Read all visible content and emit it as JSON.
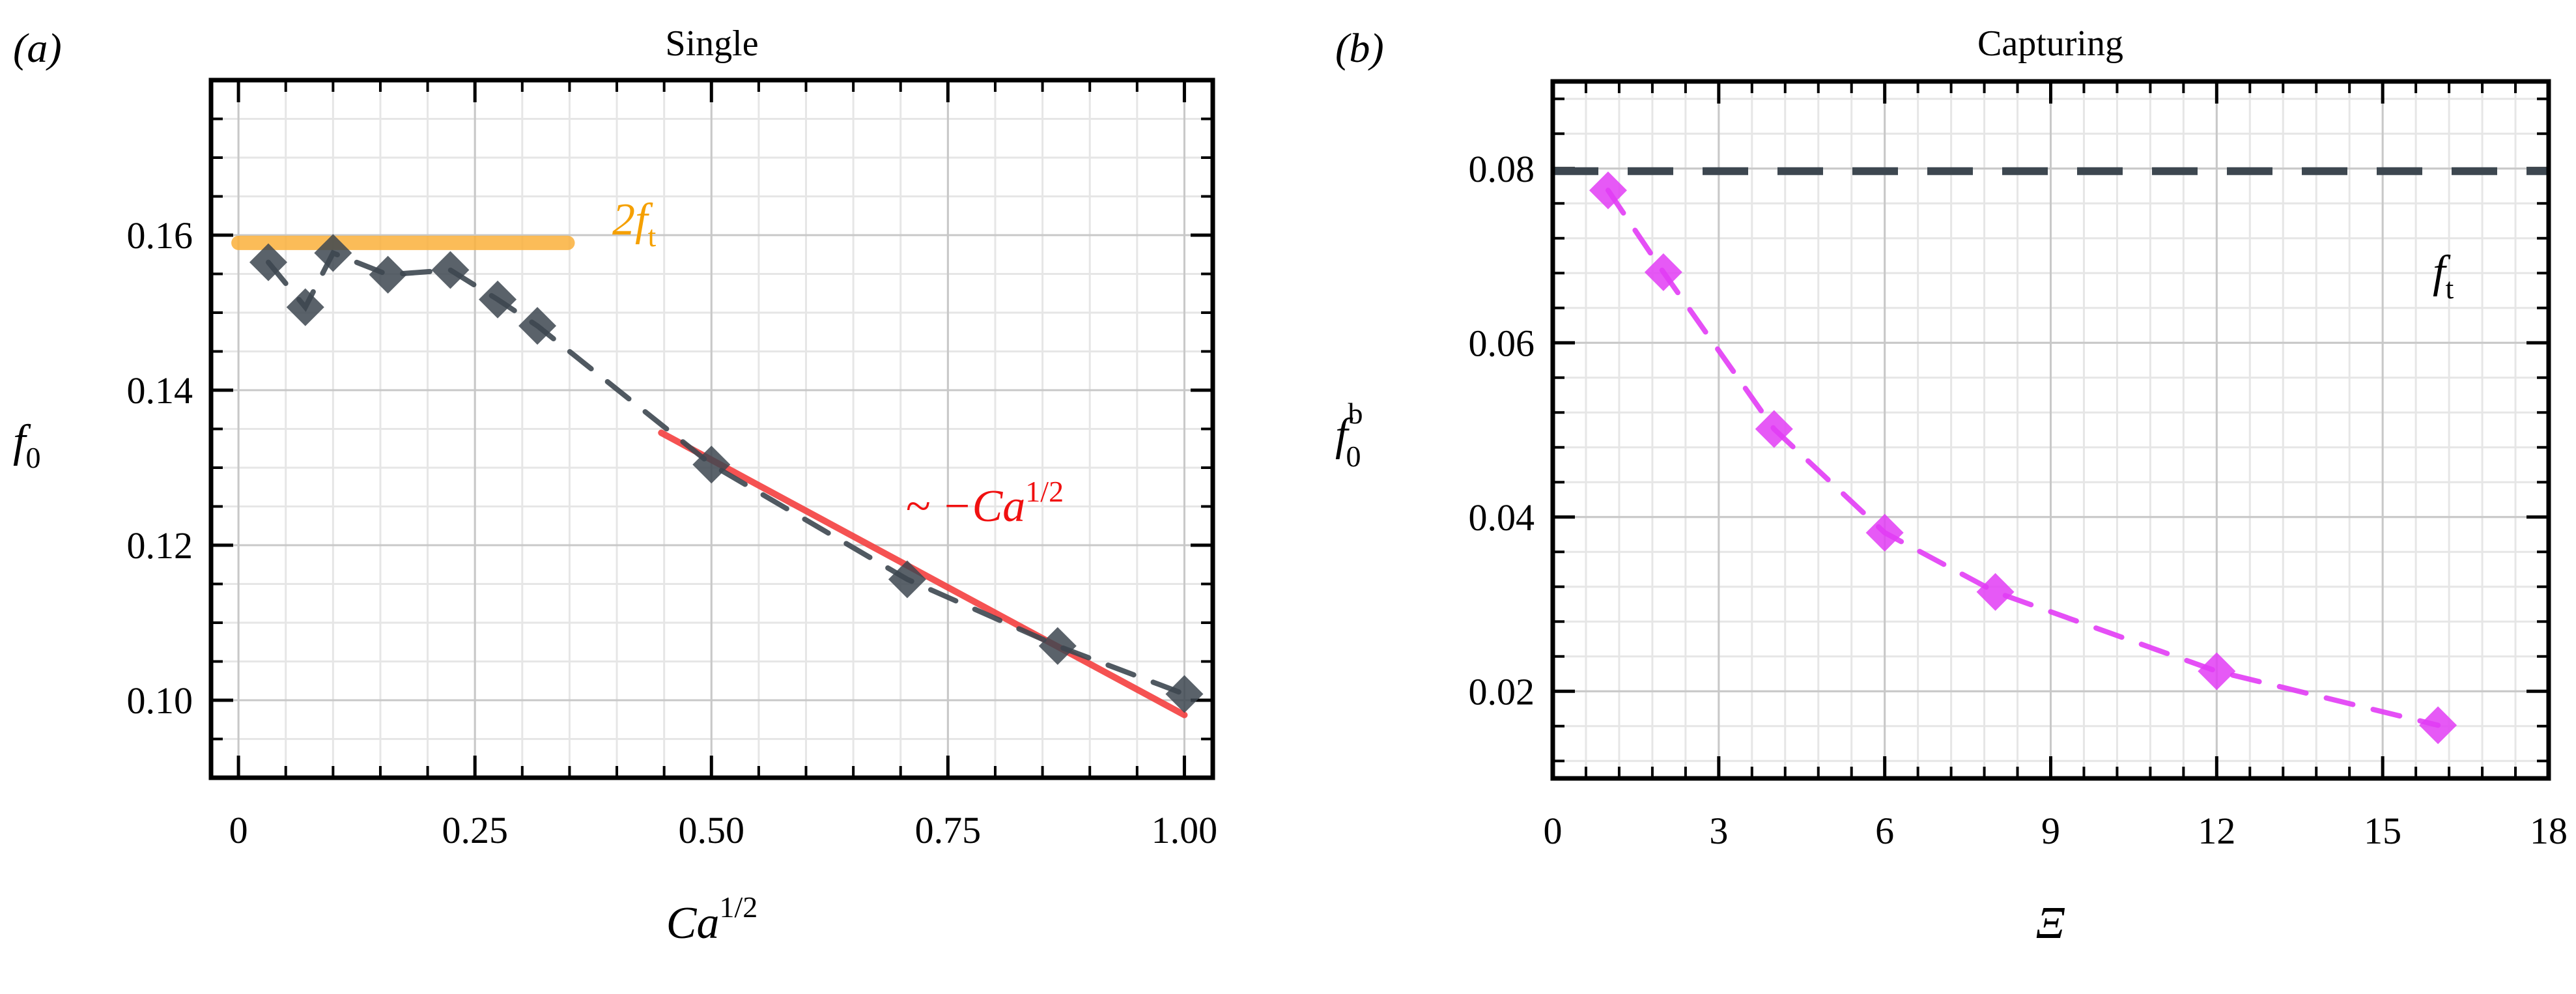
{
  "chart_data": [
    {
      "type": "scatter",
      "panel_label": "(a)",
      "title": "Single",
      "xlabel": "Ca",
      "xlabel_sup": "1/2",
      "ylabel": "f",
      "ylabel_sub": "0",
      "xlim": [
        -0.029,
        1.03
      ],
      "ylim": [
        0.09,
        0.18
      ],
      "xticks": [
        0,
        0.25,
        0.5,
        0.75,
        1.0
      ],
      "xtick_labels": [
        "0",
        "0.25",
        "0.50",
        "0.75",
        "1.00"
      ],
      "yticks": [
        0.1,
        0.12,
        0.14,
        0.16
      ],
      "ytick_labels": [
        "0.10",
        "0.12",
        "0.14",
        "0.16"
      ],
      "grid": true,
      "series": [
        {
          "style": "diamond markers with dashed line",
          "color": "#3d4750",
          "x": [
            0.0316,
            0.0707,
            0.1,
            0.158,
            0.224,
            0.274,
            0.316,
            0.5,
            0.707,
            0.866,
            1.0
          ],
          "y": [
            0.1565,
            0.1507,
            0.1577,
            0.1549,
            0.1555,
            0.1517,
            0.1483,
            0.1304,
            0.1156,
            0.107,
            0.1008
          ]
        }
      ],
      "lines": [
        {
          "label": "2f",
          "label_sub": "t",
          "color": "#fbb13c",
          "x": [
            0,
            0.348
          ],
          "y": [
            0.159,
            0.159
          ]
        },
        {
          "label": "~ −Ca",
          "label_sup": "1/2",
          "color": "#f44040",
          "x": [
            0.447,
            1.0
          ],
          "y": [
            0.1345,
            0.0981
          ]
        }
      ]
    },
    {
      "type": "scatter",
      "panel_label": "(b)",
      "title": "Capturing",
      "xlabel": "Ξ",
      "ylabel": "f",
      "ylabel_sub": "0",
      "ylabel_sup": "b",
      "xlim": [
        0,
        18
      ],
      "ylim": [
        0.01,
        0.09
      ],
      "xticks": [
        0,
        3,
        6,
        9,
        12,
        15,
        18
      ],
      "xtick_labels": [
        "0",
        "3",
        "6",
        "9",
        "12",
        "15",
        "18"
      ],
      "yticks": [
        0.02,
        0.04,
        0.06,
        0.08
      ],
      "ytick_labels": [
        "0.02",
        "0.04",
        "0.06",
        "0.08"
      ],
      "grid": true,
      "series": [
        {
          "style": "diamond markers with dashed line",
          "color": "#e23cf5",
          "x": [
            1,
            2,
            4,
            6,
            8,
            12,
            16
          ],
          "y": [
            0.0775,
            0.0681,
            0.0501,
            0.0382,
            0.0314,
            0.0223,
            0.0161
          ]
        }
      ],
      "lines": [
        {
          "label": "f",
          "label_sub": "t",
          "color": "#3d4750",
          "style": "dashed",
          "x": [
            0,
            18
          ],
          "y": [
            0.0797,
            0.0797
          ]
        }
      ]
    }
  ]
}
